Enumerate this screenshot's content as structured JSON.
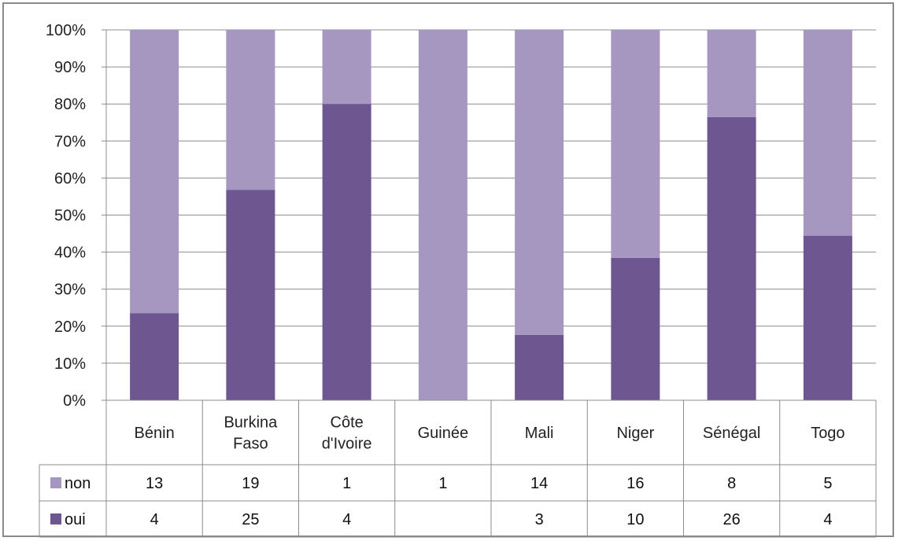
{
  "chart_data": {
    "type": "bar",
    "stacked": "percent",
    "categories": [
      [
        "Bénin"
      ],
      [
        "Burkina",
        "Faso"
      ],
      [
        "Côte",
        "d'Ivoire"
      ],
      [
        "Guinée"
      ],
      [
        "Mali"
      ],
      [
        "Niger"
      ],
      [
        "Sénégal"
      ],
      [
        "Togo"
      ]
    ],
    "series": [
      {
        "name": "oui",
        "color": "#6e5690",
        "values": [
          4,
          25,
          4,
          null,
          3,
          10,
          26,
          4
        ]
      },
      {
        "name": "non",
        "color": "#a597bf",
        "values": [
          13,
          19,
          1,
          1,
          14,
          16,
          8,
          5
        ]
      }
    ],
    "table_row_order": [
      "non",
      "oui"
    ],
    "ylim": [
      0,
      100
    ],
    "yticks": [
      "0%",
      "10%",
      "20%",
      "30%",
      "40%",
      "50%",
      "60%",
      "70%",
      "80%",
      "90%",
      "100%"
    ],
    "grid": true,
    "legend": "data-table"
  }
}
